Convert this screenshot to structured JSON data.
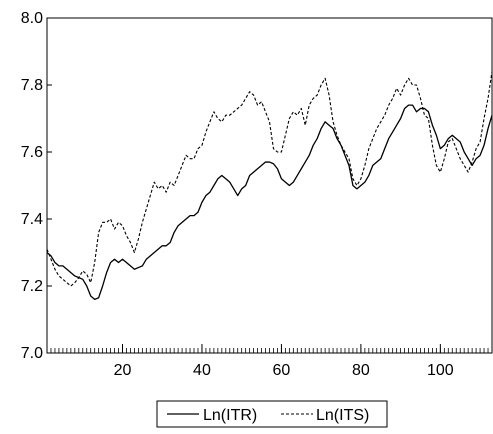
{
  "chart_data": {
    "type": "line",
    "title": "",
    "xlabel": "",
    "ylabel": "",
    "xlim": [
      1,
      113
    ],
    "ylim": [
      7.0,
      8.0
    ],
    "x_ticks": [
      20,
      40,
      60,
      80,
      100
    ],
    "y_ticks": [
      7.0,
      7.2,
      7.4,
      7.6,
      7.8,
      8.0
    ],
    "y_tick_labels": [
      "7.0",
      "7.2",
      "7.4",
      "7.6",
      "7.8",
      "8.0"
    ],
    "x_tick_labels": [
      "20",
      "40",
      "60",
      "80",
      "100"
    ],
    "grid": false,
    "legend_position": "bottom-center",
    "series": [
      {
        "name": "Ln(ITR)",
        "style": "solid",
        "color": "#000000",
        "values": [
          [
            1,
            7.3
          ],
          [
            2,
            7.29
          ],
          [
            3,
            7.27
          ],
          [
            4,
            7.26
          ],
          [
            5,
            7.26
          ],
          [
            6,
            7.25
          ],
          [
            7,
            7.24
          ],
          [
            8,
            7.23
          ],
          [
            9,
            7.225
          ],
          [
            10,
            7.22
          ],
          [
            11,
            7.2
          ],
          [
            12,
            7.17
          ],
          [
            13,
            7.16
          ],
          [
            14,
            7.165
          ],
          [
            15,
            7.2
          ],
          [
            16,
            7.24
          ],
          [
            17,
            7.27
          ],
          [
            18,
            7.28
          ],
          [
            19,
            7.27
          ],
          [
            20,
            7.28
          ],
          [
            21,
            7.27
          ],
          [
            22,
            7.26
          ],
          [
            23,
            7.25
          ],
          [
            24,
            7.255
          ],
          [
            25,
            7.26
          ],
          [
            26,
            7.28
          ],
          [
            27,
            7.29
          ],
          [
            28,
            7.3
          ],
          [
            29,
            7.31
          ],
          [
            30,
            7.32
          ],
          [
            31,
            7.32
          ],
          [
            32,
            7.33
          ],
          [
            33,
            7.36
          ],
          [
            34,
            7.38
          ],
          [
            35,
            7.39
          ],
          [
            36,
            7.4
          ],
          [
            37,
            7.41
          ],
          [
            38,
            7.41
          ],
          [
            39,
            7.42
          ],
          [
            40,
            7.45
          ],
          [
            41,
            7.47
          ],
          [
            42,
            7.48
          ],
          [
            43,
            7.5
          ],
          [
            44,
            7.52
          ],
          [
            45,
            7.53
          ],
          [
            46,
            7.52
          ],
          [
            47,
            7.51
          ],
          [
            48,
            7.49
          ],
          [
            49,
            7.47
          ],
          [
            50,
            7.49
          ],
          [
            51,
            7.5
          ],
          [
            52,
            7.53
          ],
          [
            53,
            7.54
          ],
          [
            54,
            7.55
          ],
          [
            55,
            7.56
          ],
          [
            56,
            7.57
          ],
          [
            57,
            7.57
          ],
          [
            58,
            7.565
          ],
          [
            59,
            7.55
          ],
          [
            60,
            7.52
          ],
          [
            61,
            7.51
          ],
          [
            62,
            7.5
          ],
          [
            63,
            7.51
          ],
          [
            64,
            7.53
          ],
          [
            65,
            7.55
          ],
          [
            66,
            7.57
          ],
          [
            67,
            7.59
          ],
          [
            68,
            7.62
          ],
          [
            69,
            7.64
          ],
          [
            70,
            7.67
          ],
          [
            71,
            7.69
          ],
          [
            72,
            7.68
          ],
          [
            73,
            7.67
          ],
          [
            74,
            7.64
          ],
          [
            75,
            7.62
          ],
          [
            76,
            7.59
          ],
          [
            77,
            7.56
          ],
          [
            78,
            7.5
          ],
          [
            79,
            7.49
          ],
          [
            80,
            7.5
          ],
          [
            81,
            7.51
          ],
          [
            82,
            7.53
          ],
          [
            83,
            7.56
          ],
          [
            84,
            7.57
          ],
          [
            85,
            7.58
          ],
          [
            86,
            7.61
          ],
          [
            87,
            7.64
          ],
          [
            88,
            7.66
          ],
          [
            89,
            7.68
          ],
          [
            90,
            7.7
          ],
          [
            91,
            7.73
          ],
          [
            92,
            7.74
          ],
          [
            93,
            7.74
          ],
          [
            94,
            7.72
          ],
          [
            95,
            7.73
          ],
          [
            96,
            7.73
          ],
          [
            97,
            7.72
          ],
          [
            98,
            7.68
          ],
          [
            99,
            7.65
          ],
          [
            100,
            7.61
          ],
          [
            101,
            7.62
          ],
          [
            102,
            7.64
          ],
          [
            103,
            7.65
          ],
          [
            104,
            7.64
          ],
          [
            105,
            7.63
          ],
          [
            106,
            7.6
          ],
          [
            107,
            7.58
          ],
          [
            108,
            7.56
          ],
          [
            109,
            7.58
          ],
          [
            110,
            7.59
          ],
          [
            111,
            7.62
          ],
          [
            112,
            7.67
          ],
          [
            113,
            7.71
          ]
        ]
      },
      {
        "name": "Ln(ITS)",
        "style": "dashed",
        "color": "#000000",
        "values": [
          [
            1,
            7.31
          ],
          [
            2,
            7.28
          ],
          [
            3,
            7.25
          ],
          [
            4,
            7.23
          ],
          [
            5,
            7.22
          ],
          [
            6,
            7.21
          ],
          [
            7,
            7.2
          ],
          [
            8,
            7.21
          ],
          [
            9,
            7.225
          ],
          [
            10,
            7.245
          ],
          [
            11,
            7.235
          ],
          [
            12,
            7.21
          ],
          [
            13,
            7.27
          ],
          [
            14,
            7.36
          ],
          [
            15,
            7.39
          ],
          [
            16,
            7.39
          ],
          [
            17,
            7.4
          ],
          [
            18,
            7.37
          ],
          [
            19,
            7.39
          ],
          [
            20,
            7.38
          ],
          [
            21,
            7.35
          ],
          [
            22,
            7.33
          ],
          [
            23,
            7.3
          ],
          [
            24,
            7.34
          ],
          [
            25,
            7.39
          ],
          [
            26,
            7.43
          ],
          [
            27,
            7.47
          ],
          [
            28,
            7.51
          ],
          [
            29,
            7.49
          ],
          [
            30,
            7.5
          ],
          [
            31,
            7.48
          ],
          [
            32,
            7.51
          ],
          [
            33,
            7.5
          ],
          [
            34,
            7.53
          ],
          [
            35,
            7.56
          ],
          [
            36,
            7.59
          ],
          [
            37,
            7.58
          ],
          [
            38,
            7.58
          ],
          [
            39,
            7.61
          ],
          [
            40,
            7.62
          ],
          [
            41,
            7.66
          ],
          [
            42,
            7.69
          ],
          [
            43,
            7.72
          ],
          [
            44,
            7.7
          ],
          [
            45,
            7.69
          ],
          [
            46,
            7.71
          ],
          [
            47,
            7.71
          ],
          [
            48,
            7.72
          ],
          [
            49,
            7.73
          ],
          [
            50,
            7.74
          ],
          [
            51,
            7.76
          ],
          [
            52,
            7.78
          ],
          [
            53,
            7.77
          ],
          [
            54,
            7.74
          ],
          [
            55,
            7.75
          ],
          [
            56,
            7.72
          ],
          [
            57,
            7.69
          ],
          [
            58,
            7.61
          ],
          [
            59,
            7.6
          ],
          [
            60,
            7.6
          ],
          [
            61,
            7.65
          ],
          [
            62,
            7.7
          ],
          [
            63,
            7.72
          ],
          [
            64,
            7.71
          ],
          [
            65,
            7.73
          ],
          [
            66,
            7.68
          ],
          [
            67,
            7.74
          ],
          [
            68,
            7.76
          ],
          [
            69,
            7.77
          ],
          [
            70,
            7.8
          ],
          [
            71,
            7.82
          ],
          [
            72,
            7.77
          ],
          [
            73,
            7.69
          ],
          [
            74,
            7.65
          ],
          [
            75,
            7.62
          ],
          [
            76,
            7.6
          ],
          [
            77,
            7.58
          ],
          [
            78,
            7.52
          ],
          [
            79,
            7.5
          ],
          [
            80,
            7.52
          ],
          [
            81,
            7.56
          ],
          [
            82,
            7.61
          ],
          [
            83,
            7.64
          ],
          [
            84,
            7.67
          ],
          [
            85,
            7.69
          ],
          [
            86,
            7.71
          ],
          [
            87,
            7.74
          ],
          [
            88,
            7.76
          ],
          [
            89,
            7.79
          ],
          [
            90,
            7.77
          ],
          [
            91,
            7.8
          ],
          [
            92,
            7.82
          ],
          [
            93,
            7.8
          ],
          [
            94,
            7.8
          ],
          [
            95,
            7.76
          ],
          [
            96,
            7.71
          ],
          [
            97,
            7.7
          ],
          [
            98,
            7.62
          ],
          [
            99,
            7.56
          ],
          [
            100,
            7.54
          ],
          [
            101,
            7.58
          ],
          [
            102,
            7.63
          ],
          [
            103,
            7.64
          ],
          [
            104,
            7.61
          ],
          [
            105,
            7.58
          ],
          [
            106,
            7.56
          ],
          [
            107,
            7.54
          ],
          [
            108,
            7.57
          ],
          [
            109,
            7.61
          ],
          [
            110,
            7.63
          ],
          [
            111,
            7.7
          ],
          [
            112,
            7.76
          ],
          [
            113,
            7.84
          ]
        ]
      }
    ]
  }
}
